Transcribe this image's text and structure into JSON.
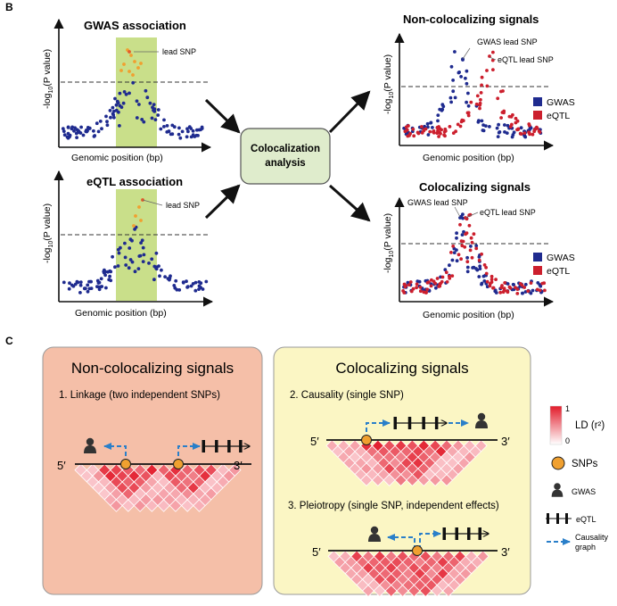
{
  "panel_b": {
    "letter": "B",
    "gwas_title": "GWAS association",
    "eqtl_title": "eQTL association",
    "lead_snp": "lead SNP",
    "xlabel": "Genomic position (bp)",
    "ylabel": "-log10(P value)",
    "coloc_box": [
      "Colocalization",
      "analysis"
    ],
    "noncoloc_title": "Non-colocalizing signals",
    "coloc_title": "Colocalizing signals",
    "gwas_lead_snp": "GWAS lead SNP",
    "eqtl_lead_snp": "eQTL lead SNP",
    "legend_gwas": "GWAS",
    "legend_eqtl": "eQTL"
  },
  "panel_c": {
    "letter": "C",
    "noncoloc_header": "Non-colocalizing signals",
    "coloc_header": "Colocalizing signals",
    "linkage_label": "1. Linkage (two independent SNPs)",
    "causality_label": "2. Causality (single SNP)",
    "pleiotropy_label": "3. Pleiotropy (single SNP, independent effects)",
    "five_prime": "5′",
    "three_prime": "3′",
    "legend": {
      "ld_max": "1",
      "ld_min": "0",
      "ld_label": "LD (r²)",
      "snps": "SNPs",
      "gwas": "GWAS",
      "eqtl": "eQTL",
      "causality_line1": "Causality",
      "causality_line2": "graph"
    }
  },
  "colors": {
    "blue_dot": "#1f2b8f",
    "red_dot": "#cc1f2d",
    "orange_dot": "#f0a030",
    "highlight": "#c9df8a",
    "noncoloc_bg": "#f5bfa8",
    "coloc_bg": "#fbf6c4",
    "coloc_box": "#dfeccc",
    "arrow_blue": "#2a7fc9",
    "person": "#333333"
  }
}
